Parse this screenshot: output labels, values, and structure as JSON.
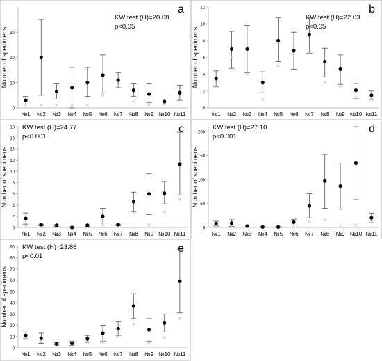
{
  "figure": {
    "ylabel": "Number of specimens",
    "categories": [
      "№1",
      "№2",
      "№3",
      "№4",
      "№5",
      "№6",
      "№7",
      "№8",
      "№9",
      "№10",
      "№11"
    ]
  },
  "colors": {
    "point": "#000000",
    "error_bar": "#555555",
    "secondary_marker": "#c8c8c8",
    "axis": "#bfbfbf",
    "text": "#000000"
  },
  "chart_data": [
    {
      "type": "scatter",
      "panel_label": "a",
      "stat_line1": "KW test (H)=20.08",
      "stat_line2": "p<0.05",
      "ylabel": "Number of specimens",
      "ylim": [
        0,
        40
      ],
      "yticks": [
        0,
        10,
        20,
        30
      ],
      "categories": [
        "№1",
        "№2",
        "№3",
        "№4",
        "№5",
        "№6",
        "№7",
        "№8",
        "№9",
        "№10",
        "№11"
      ],
      "mean": [
        3,
        20,
        6.5,
        8,
        10,
        13,
        11,
        7,
        5.5,
        2.5,
        6
      ],
      "lower": [
        1.5,
        5,
        3.5,
        0,
        4.5,
        6,
        8,
        4.5,
        2,
        1.5,
        3
      ],
      "upper": [
        4.5,
        35,
        9.5,
        16,
        16,
        21,
        14,
        9.5,
        9.5,
        3.5,
        9
      ],
      "secondary": [
        1,
        1,
        1,
        1,
        1,
        5,
        9,
        2.5,
        1,
        1.5,
        4
      ]
    },
    {
      "type": "scatter",
      "panel_label": "b",
      "stat_line1": "KW test (H)=22.03",
      "stat_line2": "p<0.05",
      "ylabel": "Number of specimens",
      "ylim": [
        0,
        12
      ],
      "yticks": [
        0,
        2,
        4,
        6,
        8,
        10,
        12
      ],
      "categories": [
        "№1",
        "№2",
        "№3",
        "№4",
        "№5",
        "№6",
        "№7",
        "№8",
        "№9",
        "№10",
        "№11"
      ],
      "mean": [
        3.5,
        7,
        7,
        3,
        8,
        6.8,
        8.7,
        5.5,
        4.6,
        2.1,
        1.5
      ],
      "lower": [
        2.5,
        4.7,
        4.2,
        1.8,
        5.5,
        4.6,
        6.5,
        3.7,
        2.8,
        1.1,
        1
      ],
      "upper": [
        4.4,
        9.1,
        9.8,
        4.3,
        10.7,
        9,
        10.7,
        7.1,
        6.3,
        2.9,
        2
      ],
      "secondary": [
        2.5,
        6,
        4,
        1,
        5,
        6.5,
        6.5,
        3,
        2.6,
        1.2,
        1
      ]
    },
    {
      "type": "scatter",
      "panel_label": "c",
      "stat_line1": "KW test (H)=24.77",
      "stat_line2": "p<0.001",
      "ylabel": "Number of specimens",
      "ylim": [
        0,
        18
      ],
      "yticks": [
        0,
        2,
        4,
        6,
        8,
        10,
        12,
        14,
        16,
        18
      ],
      "categories": [
        "№1",
        "№2",
        "№3",
        "№4",
        "№5",
        "№6",
        "№7",
        "№8",
        "№9",
        "№10",
        "№11"
      ],
      "mean": [
        1.6,
        0.5,
        0.4,
        0,
        0.4,
        2,
        0.5,
        4.6,
        6,
        6.1,
        11.3
      ],
      "lower": [
        0.6,
        0.3,
        0.2,
        0,
        0.2,
        0.8,
        0.3,
        2.8,
        2.3,
        4.2,
        5.8
      ],
      "upper": [
        2.6,
        0.6,
        0.5,
        0.1,
        0.5,
        3.4,
        0.6,
        6.3,
        9.6,
        8.2,
        17
      ],
      "secondary": [
        0.2,
        0.1,
        0.1,
        0,
        0.1,
        0.5,
        0.2,
        2.6,
        0.5,
        2.8,
        5
      ]
    },
    {
      "type": "scatter",
      "panel_label": "d",
      "stat_line1": "KW test (H)=27.10",
      "stat_line2": "p<0.001",
      "ylabel": "Number of specimens",
      "ylim": [
        0,
        210
      ],
      "yticks": [
        0,
        50,
        100,
        150,
        200
      ],
      "categories": [
        "№1",
        "№2",
        "№3",
        "№4",
        "№5",
        "№6",
        "№7",
        "№8",
        "№9",
        "№10",
        "№11"
      ],
      "mean": [
        8,
        9,
        3,
        1,
        1,
        11,
        45,
        97,
        86,
        134,
        20
      ],
      "lower": [
        3,
        2,
        1,
        0,
        0,
        5,
        20,
        40,
        38,
        58,
        10
      ],
      "upper": [
        13,
        16,
        5,
        2,
        2,
        17,
        70,
        152,
        134,
        210,
        30
      ],
      "secondary": [
        2,
        2,
        1,
        0,
        0,
        3,
        13,
        16,
        3,
        5,
        12
      ]
    },
    {
      "type": "scatter",
      "panel_label": "e",
      "stat_line1": "KW test (H)=23.86",
      "stat_line2": "p<0.01",
      "ylabel": "Number of specimens",
      "ylim": [
        0,
        90
      ],
      "yticks": [
        0,
        10,
        20,
        30,
        40,
        50,
        60,
        70,
        80,
        90
      ],
      "categories": [
        "№1",
        "№2",
        "№3",
        "№4",
        "№5",
        "№6",
        "№7",
        "№8",
        "№9",
        "№10",
        "№11"
      ],
      "mean": [
        11,
        8.5,
        3.5,
        4,
        8,
        13,
        17,
        37,
        16,
        22,
        59
      ],
      "lower": [
        8,
        4,
        2.5,
        2,
        5,
        6,
        11,
        26,
        6,
        14,
        31
      ],
      "upper": [
        14,
        13,
        4.5,
        6,
        11,
        20,
        23,
        48,
        26,
        30,
        87
      ],
      "secondary": [
        8,
        6,
        2,
        2,
        5,
        5,
        10,
        21,
        4,
        9,
        26
      ]
    }
  ]
}
